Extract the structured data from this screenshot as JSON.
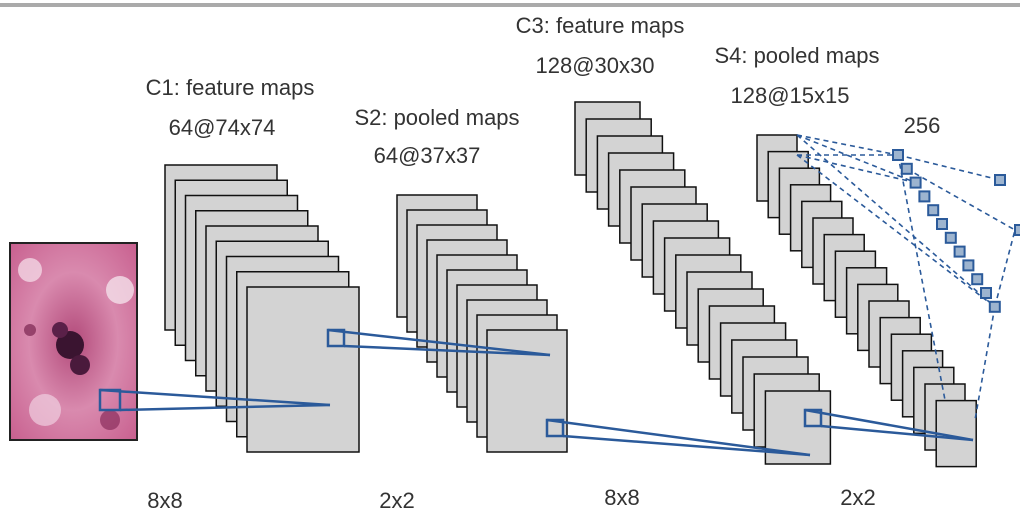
{
  "layers": [
    {
      "title": "C1: feature maps",
      "size": "64@74x74"
    },
    {
      "title": "S2: pooled maps",
      "size": "64@37x37"
    },
    {
      "title": "C3: feature maps",
      "size": "128@30x30"
    },
    {
      "title": "S4: pooled maps",
      "size": "128@15x15"
    }
  ],
  "dense": {
    "label": "256"
  },
  "kernels": [
    "8x8",
    "2x2",
    "8x8",
    "2x2"
  ]
}
